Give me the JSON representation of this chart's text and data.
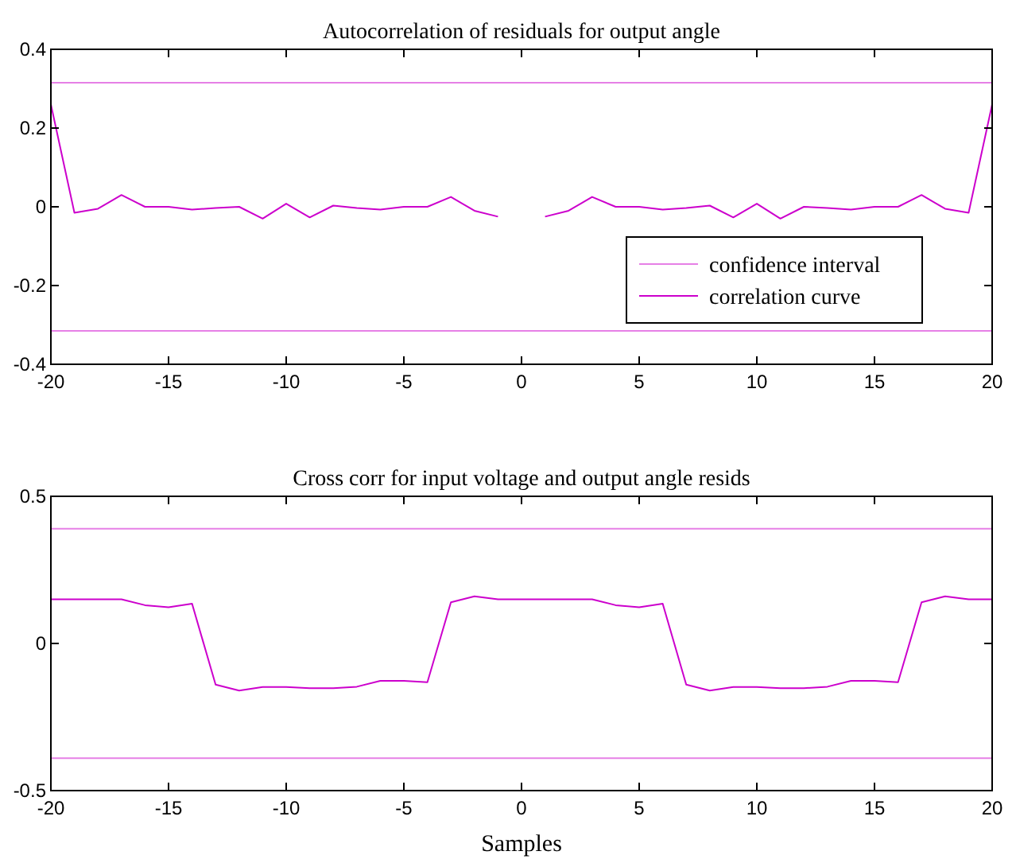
{
  "chart_data": [
    {
      "type": "line",
      "title": "Autocorrelation of residuals for output angle",
      "xlim": [
        -20,
        20
      ],
      "xticks": [
        -20,
        -15,
        -10,
        -5,
        0,
        5,
        10,
        15,
        20
      ],
      "ylim": [
        -0.4,
        0.4
      ],
      "yticks": [
        -0.4,
        -0.2,
        0,
        0.2,
        0.4
      ],
      "grid": false,
      "legend": "bottom right",
      "series": [
        {
          "name": "confidence interval",
          "color": "#e680e6",
          "x": [
            -20,
            20
          ],
          "values": [
            0.315,
            0.315
          ]
        },
        {
          "color": "#e680e6",
          "x": [
            -20,
            20
          ],
          "values": [
            -0.315,
            -0.315
          ]
        },
        {
          "name": "correlation curve",
          "color": "#cc00cc",
          "x": [
            -20,
            -19,
            -18,
            -17,
            -16,
            -15,
            -14,
            -13,
            -12,
            -11,
            -10,
            -9,
            -8,
            -7,
            -6,
            -5,
            -4,
            -3,
            -2,
            -1,
            0,
            1,
            2,
            3,
            4,
            5,
            6,
            7,
            8,
            9,
            10,
            11,
            12,
            13,
            14,
            15,
            16,
            17,
            18,
            19,
            20
          ],
          "values": [
            0.26,
            -0.015,
            -0.005,
            0.03,
            0,
            0,
            -0.007,
            -0.003,
            0,
            -0.03,
            0.008,
            -0.027,
            0.003,
            -0.003,
            -0.007,
            0,
            0,
            0.025,
            -0.01,
            -0.025,
            null,
            -0.025,
            -0.01,
            0.025,
            0,
            0,
            -0.007,
            -0.003,
            0.003,
            -0.027,
            0.008,
            -0.03,
            0,
            -0.003,
            -0.007,
            0,
            0,
            0.03,
            -0.005,
            -0.015,
            0.26
          ]
        }
      ]
    },
    {
      "type": "line",
      "title": "Cross corr for input voltage and output angle resids",
      "xlabel": "Samples",
      "xlim": [
        -20,
        20
      ],
      "xticks": [
        -20,
        -15,
        -10,
        -5,
        0,
        5,
        10,
        15,
        20
      ],
      "ylim": [
        -0.5,
        0.5
      ],
      "yticks": [
        -0.5,
        0,
        0.5
      ],
      "grid": false,
      "legend": false,
      "series": [
        {
          "color": "#e680e6",
          "x": [
            -20,
            20
          ],
          "values": [
            0.39,
            0.39
          ]
        },
        {
          "color": "#e680e6",
          "x": [
            -20,
            20
          ],
          "values": [
            -0.39,
            -0.39
          ]
        },
        {
          "color": "#cc00cc",
          "x": [
            -20,
            -19,
            -18,
            -17,
            -16,
            -15,
            -14,
            -13,
            -12,
            -11,
            -10,
            -9,
            -8,
            -7,
            -6,
            -5,
            -4,
            -3,
            -2,
            -1,
            0,
            1,
            2,
            3,
            4,
            5,
            6,
            7,
            8,
            9,
            10,
            11,
            12,
            13,
            14,
            15,
            16,
            17,
            18,
            19,
            20
          ],
          "values": [
            0.15,
            0.15,
            0.15,
            0.15,
            0.13,
            0.123,
            0.135,
            -0.14,
            -0.16,
            -0.148,
            -0.148,
            -0.152,
            -0.152,
            -0.147,
            -0.127,
            -0.127,
            -0.132,
            0.14,
            0.16,
            0.15,
            0.15,
            0.15,
            0.15,
            0.15,
            0.13,
            0.123,
            0.135,
            -0.14,
            -0.16,
            -0.148,
            -0.148,
            -0.152,
            -0.152,
            -0.147,
            -0.127,
            -0.127,
            -0.132,
            0.14,
            0.16,
            0.15,
            0.15
          ]
        }
      ]
    }
  ]
}
